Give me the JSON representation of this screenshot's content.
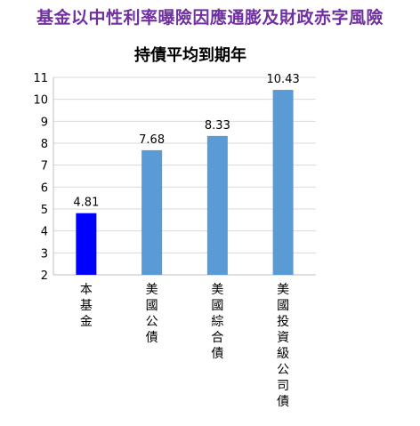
{
  "header": {
    "title": "基金以中性利率曝險因應通膨及財政赤字風險"
  },
  "chart_data": {
    "type": "bar",
    "title": "持債平均到期年",
    "categories": [
      "本基金",
      "美國公債",
      "美國綜合債",
      "美國投資級公司債"
    ],
    "values": [
      4.81,
      7.68,
      8.33,
      10.43
    ],
    "data_labels": [
      "4.81",
      "7.68",
      "8.33",
      "10.43"
    ],
    "ylim": [
      2,
      11
    ],
    "yticks": [
      2,
      3,
      4,
      5,
      6,
      7,
      8,
      9,
      10,
      11
    ],
    "grid": true,
    "legend": "none",
    "colors": [
      "#0000ff",
      "#5b9bd5",
      "#5b9bd5",
      "#5b9bd5"
    ]
  }
}
